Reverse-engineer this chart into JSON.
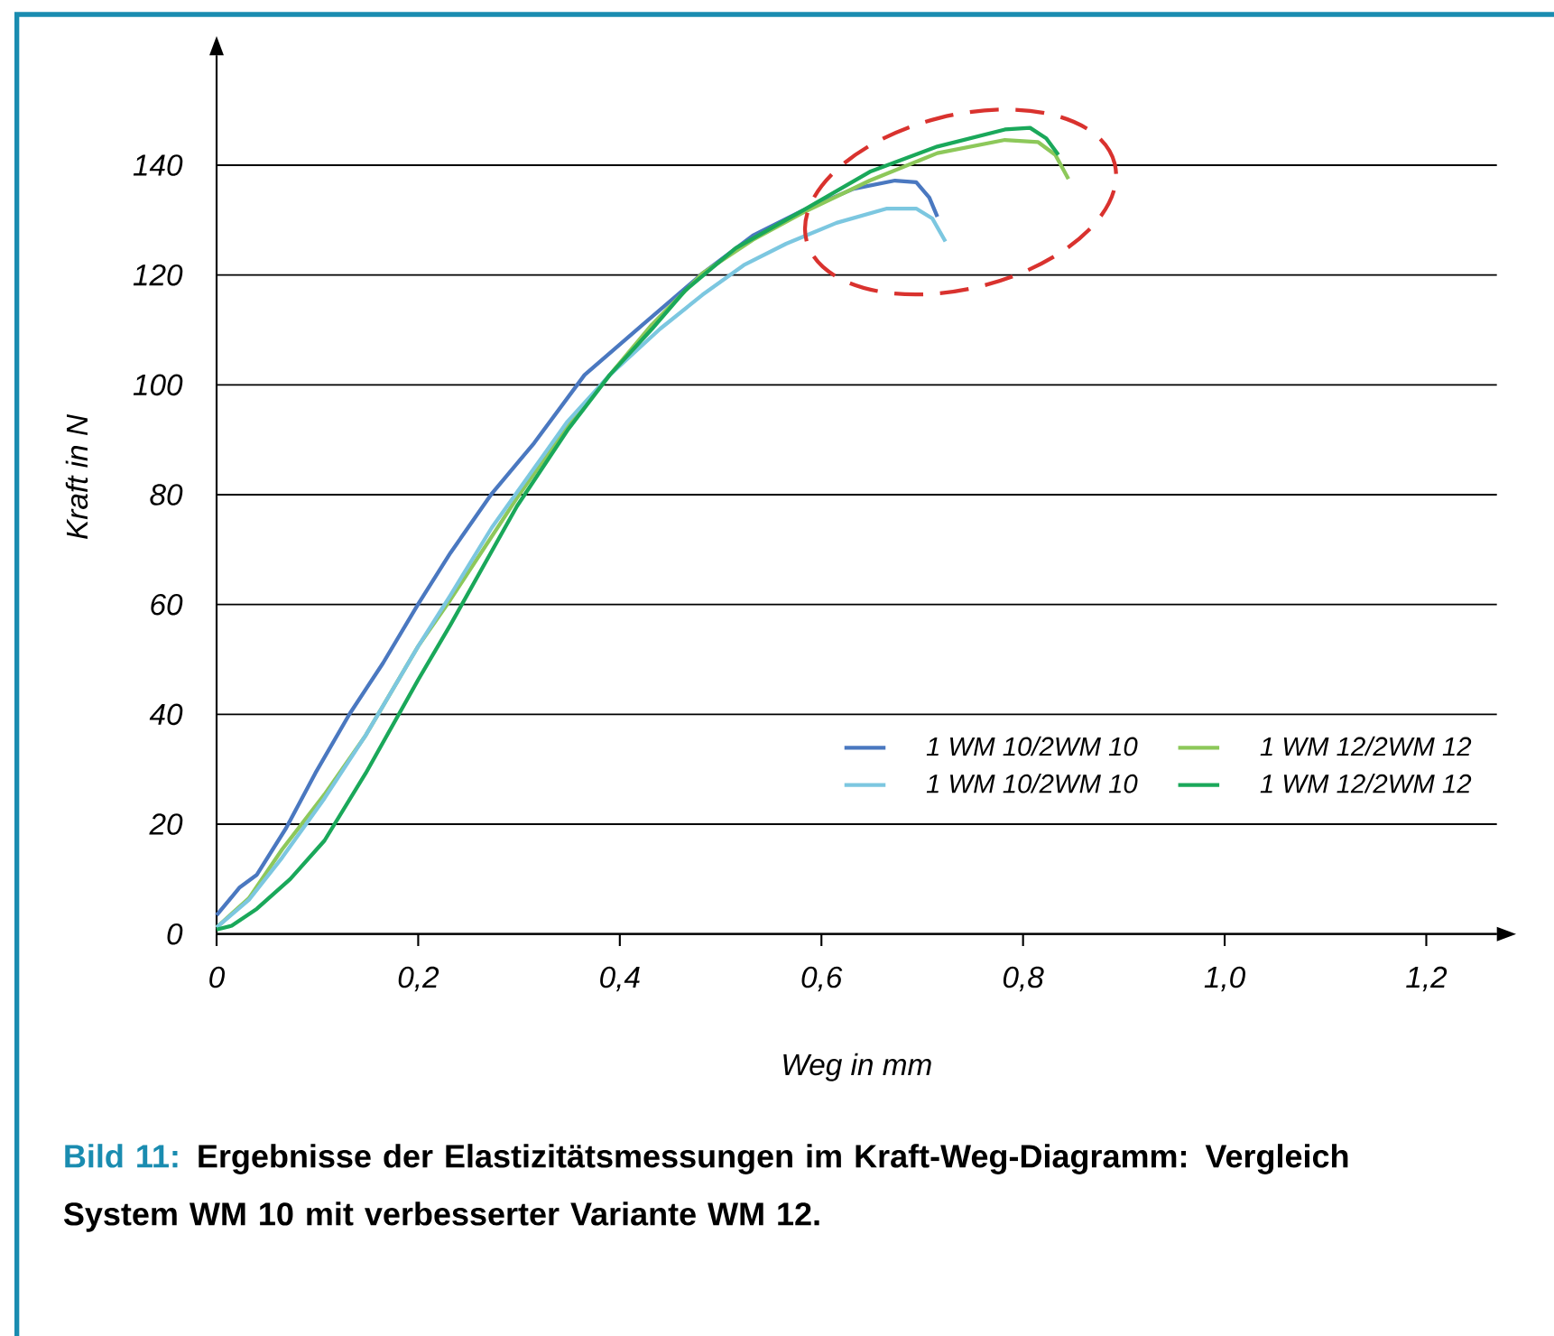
{
  "chart_data": {
    "type": "line",
    "xlabel": "Weg in mm",
    "ylabel": "Kraft in N",
    "annotations": [
      "Bild 11:",
      "Ergebnisse der Elastizitätsmessungen im Kraft-Weg-Diagramm: Vergleich System WM 10 mit verbesserter Variante WM 12."
    ],
    "xlim": [
      0,
      1.27
    ],
    "ylim": [
      0,
      160
    ],
    "xticks": [
      0,
      {
        "value": 0.2,
        "label": "0,2"
      },
      {
        "value": 0.4,
        "label": "0,4"
      },
      {
        "value": 0.6,
        "label": "0,6"
      },
      {
        "value": 0.8,
        "label": "0,8"
      },
      {
        "value": 1.0,
        "label": "1,0"
      },
      {
        "value": 1.2,
        "label": "1,2"
      }
    ],
    "yticks": [
      0,
      20,
      40,
      60,
      80,
      100,
      120,
      140
    ],
    "grid": "y",
    "legend": "bottom right",
    "marker": "none",
    "line_style": "solid",
    "series": [
      {
        "name": "1 WM 10/2WM 10",
        "color": "#4a78c0",
        "x": [
          0,
          0.023,
          0.04,
          0.069,
          0.098,
          0.132,
          0.165,
          0.2,
          0.232,
          0.273,
          0.315,
          0.365,
          0.423,
          0.482,
          0.532,
          0.582,
          0.632,
          0.673,
          0.694,
          0.707,
          0.715
        ],
        "values": [
          3.4,
          8.5,
          10.8,
          19.3,
          29.3,
          40.1,
          49.3,
          60.1,
          69.4,
          80.2,
          89.4,
          101.8,
          111.0,
          120.3,
          127.2,
          131.8,
          135.7,
          137.2,
          136.9,
          134.1,
          130.6
        ]
      },
      {
        "name": "1 WM 10/2WM 10",
        "color": "#7cc7e0",
        "x": [
          0,
          0.032,
          0.065,
          0.107,
          0.148,
          0.2,
          0.232,
          0.273,
          0.315,
          0.348,
          0.39,
          0.44,
          0.482,
          0.523,
          0.565,
          0.615,
          0.665,
          0.694,
          0.71,
          0.723
        ],
        "values": [
          1.2,
          6.2,
          13.9,
          24.7,
          36.2,
          52.4,
          61.7,
          74.0,
          84.8,
          93.3,
          101.8,
          110.2,
          116.4,
          121.8,
          125.7,
          129.5,
          132.1,
          132.1,
          130.3,
          126.1
        ]
      },
      {
        "name": "1 WM 12/2WM 12",
        "color": "#8dc85a",
        "x": [
          0,
          0.032,
          0.065,
          0.107,
          0.148,
          0.2,
          0.232,
          0.298,
          0.348,
          0.39,
          0.432,
          0.482,
          0.532,
          0.582,
          0.648,
          0.715,
          0.782,
          0.815,
          0.832,
          0.845
        ],
        "values": [
          1.2,
          6.5,
          15.4,
          25.4,
          36.2,
          52.4,
          60.9,
          79.4,
          92.5,
          101.8,
          111.0,
          120.3,
          126.4,
          131.4,
          137.2,
          142.2,
          144.6,
          144.2,
          141.9,
          137.5
        ]
      },
      {
        "name": "1 WM 12/2WM 12",
        "color": "#1aa85a",
        "x": [
          0,
          0.015,
          0.04,
          0.073,
          0.107,
          0.148,
          0.2,
          0.232,
          0.298,
          0.348,
          0.39,
          0.432,
          0.465,
          0.515,
          0.582,
          0.648,
          0.715,
          0.782,
          0.807,
          0.823,
          0.835
        ],
        "values": [
          0.8,
          1.5,
          4.6,
          10.0,
          17.0,
          29.3,
          46.3,
          56.3,
          77.9,
          91.7,
          101.8,
          110.2,
          117.2,
          124.9,
          131.8,
          138.8,
          143.4,
          146.5,
          146.8,
          144.9,
          141.9
        ]
      }
    ]
  }
}
